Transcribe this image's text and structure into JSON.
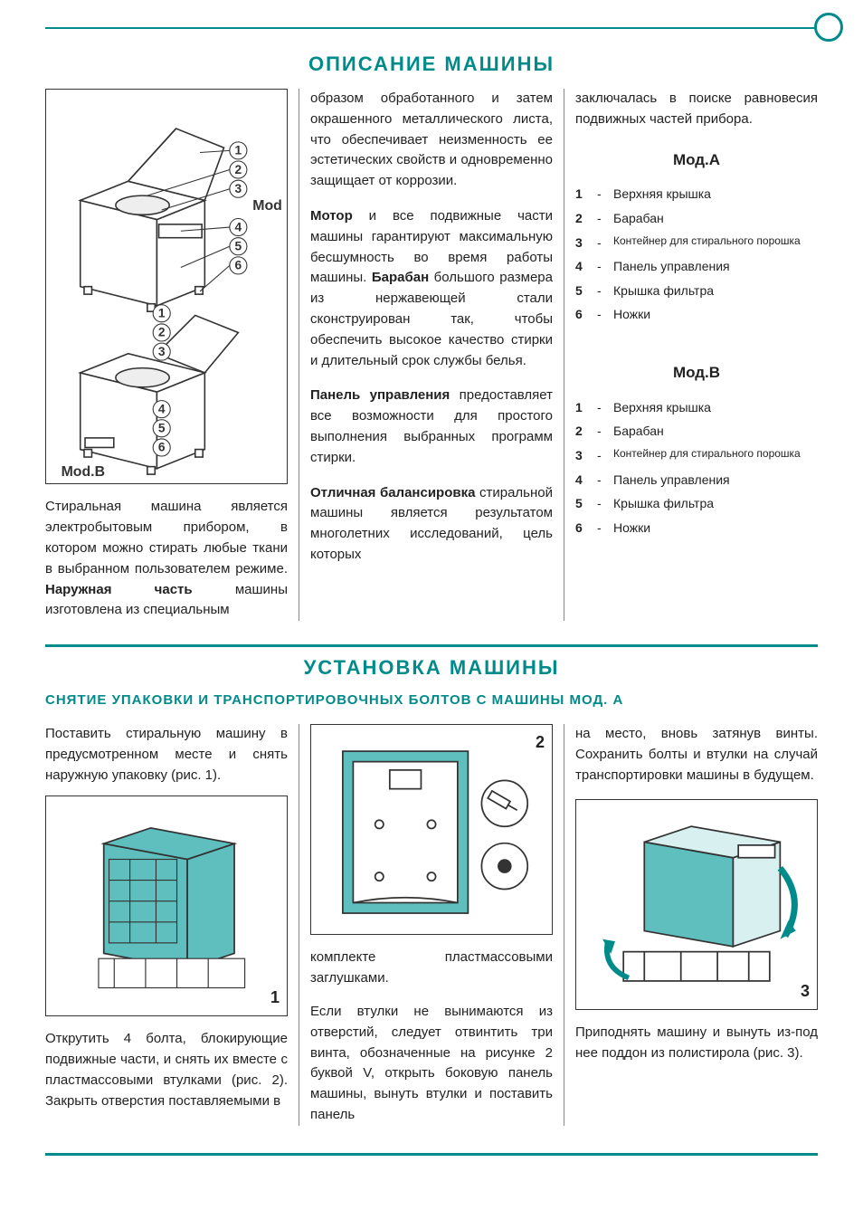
{
  "colors": {
    "accent": "#008b8b",
    "text": "#222222",
    "rule": "#008b8b",
    "figFill": "#5fbfbf",
    "figStroke": "#333333"
  },
  "section1": {
    "title": "ОПИСАНИЕ МАШИНЫ",
    "diagram": {
      "modA_label": "Mod.A",
      "modB_label": "Mod.B",
      "callouts": [
        "1",
        "2",
        "3",
        "4",
        "5",
        "6"
      ]
    },
    "col1_p1a": "Стиральная машина является электробытовым прибором, в котором можно стирать любые ткани в выбранном пользователем режиме. ",
    "col1_p1b": "Наружная часть",
    "col1_p1c": " машины изготовлена из специальным",
    "col2_p1": "образом обработанного и затем окрашенного металлического листа, что обеспечивает неизменность ее эстетических свойств и одновременно защищает от коррозии.",
    "col2_p2a": "Мотор",
    "col2_p2b": " и все подвижные части машины гарантируют максимальную бесшумность во время работы машины. ",
    "col2_p2c": "Барабан",
    "col2_p2d": " большого размера из нержавеющей стали сконструирован так, чтобы обеспечить высокое качество стирки и длительный срок службы белья.",
    "col2_p3a": "Панель управления",
    "col2_p3b": " предоставляет все возможности для простого выполнения выбранных программ стирки.",
    "col2_p4a": "Отличная балансировка",
    "col2_p4b": " стиральной машины является результатом многолетних исследований, цель которых",
    "col3_p1": "заключалась в поиске равновесия подвижных частей прибора.",
    "modA_title": "Мод.A",
    "modB_title": "Мод.B",
    "parts": [
      {
        "n": "1",
        "label": "Верхняя крышка"
      },
      {
        "n": "2",
        "label": "Барабан"
      },
      {
        "n": "3",
        "label": "Контейнер для стирального порошка",
        "small": true
      },
      {
        "n": "4",
        "label": "Панель управления"
      },
      {
        "n": "5",
        "label": "Крышка фильтра"
      },
      {
        "n": "6",
        "label": "Ножки"
      }
    ]
  },
  "section2": {
    "title": "УСТАНОВКА МАШИНЫ",
    "subtitle": "СНЯТИЕ УПАКОВКИ И ТРАНСПОРТИРОВОЧНЫХ БОЛТОВ С МАШИНЫ МОД. А",
    "fig1_num": "1",
    "fig2_num": "2",
    "fig3_num": "3",
    "col1_p1": "Поставить стиральную машину в предусмотренном месте и снять наружную упаковку (рис. 1).",
    "col1_p2": "Открутить 4 болта, блокирующие подвижные части, и снять их вместе с пластмассовыми втулками (рис. 2). Закрыть отверстия поставляемыми в",
    "col2_p1": "комплекте пластмассовыми заглушками.",
    "col2_p2": "Если втулки не вынимаются из отверстий, следует отвинтить три винта, обозначенные на рисунке 2 буквой V, открыть боковую панель машины, вынуть втулки и поставить панель",
    "col3_p1": "на место, вновь затянув винты. Сохранить болты и втулки на случай транспортировки машины в будущем.",
    "col3_p2": "Приподнять машину и вынуть из-под нее поддон из полистирола (рис. 3)."
  }
}
